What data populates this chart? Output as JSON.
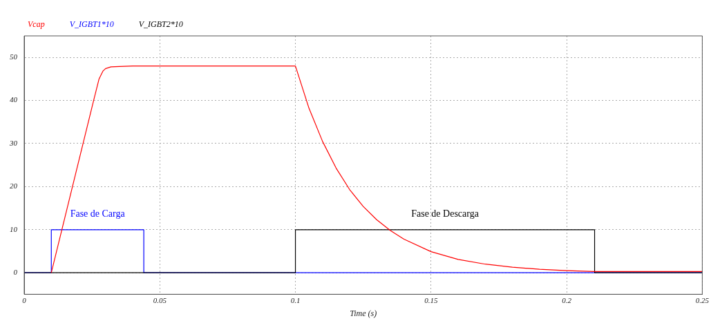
{
  "chart_data": {
    "type": "line",
    "xlabel": "Time (s)",
    "xlim": [
      0,
      0.25
    ],
    "ylim": [
      -5,
      55
    ],
    "xticks": [
      0,
      0.05,
      0.1,
      0.15,
      0.2,
      0.25
    ],
    "yticks": [
      0,
      10,
      20,
      30,
      40,
      50
    ],
    "grid": true,
    "legend": "top left",
    "marker": "none",
    "line_style": "solid",
    "annotations": [
      "Fase de Carga",
      "Fase de Descarga"
    ],
    "series": [
      {
        "name": "Vcap",
        "color": "#ff0000",
        "x": [
          0.01,
          0.0256,
          0.0276,
          0.028,
          0.029,
          0.03,
          0.032,
          0.035,
          0.04,
          0.1,
          0.105,
          0.11,
          0.115,
          0.12,
          0.125,
          0.13,
          0.135,
          0.14,
          0.15,
          0.16,
          0.17,
          0.18,
          0.19,
          0.2,
          0.21,
          0.25
        ],
        "values": [
          0,
          40,
          45,
          45.5,
          46.8,
          47.4,
          47.8,
          47.9,
          48,
          48,
          38.2,
          30.5,
          24.3,
          19.3,
          15.4,
          12.3,
          9.8,
          7.8,
          4.9,
          3.1,
          2.0,
          1.3,
          0.8,
          0.5,
          0.3,
          0.3
        ]
      },
      {
        "name": "V_IGBT1*10",
        "color": "#0000ff",
        "x": [
          0,
          0.01,
          0.01,
          0.0441,
          0.0441,
          0.25
        ],
        "values": [
          0,
          0,
          10,
          10,
          0,
          0
        ]
      },
      {
        "name": "V_IGBT2*10",
        "color": "#000000",
        "x": [
          0,
          0.1,
          0.1,
          0.2103,
          0.2103,
          0.25
        ],
        "values": [
          0,
          0,
          10,
          10,
          0,
          0
        ]
      }
    ]
  }
}
